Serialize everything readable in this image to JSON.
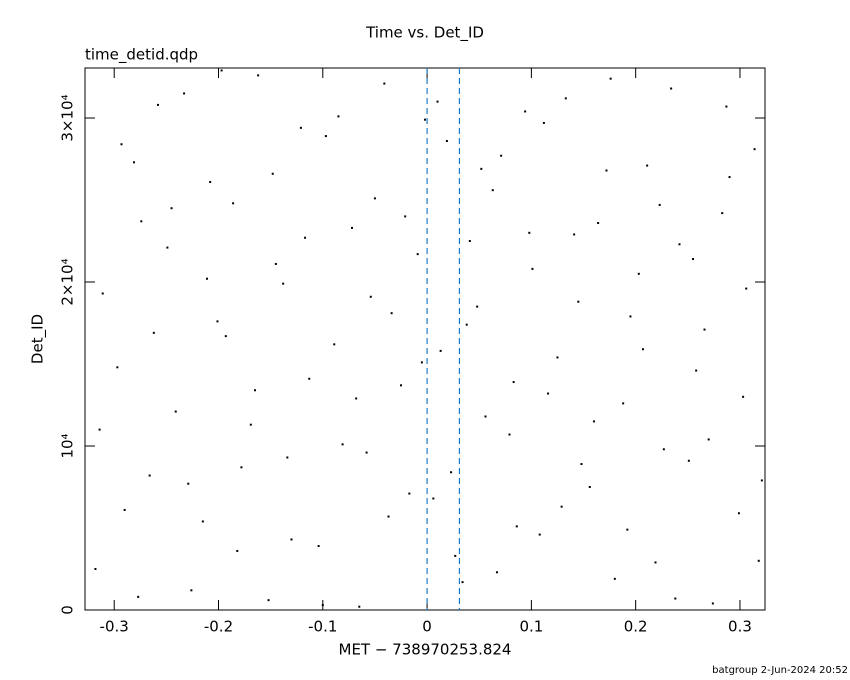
{
  "chart_data": {
    "type": "scatter",
    "title": "Time vs. Det_ID",
    "subtitle": "time_detid.qdp",
    "x_label": "MET − 738970253.824",
    "y_label": "Det_ID",
    "footer": "batgroup  2-Jun-2024 20:52",
    "xlim": [
      -0.328,
      0.324
    ],
    "ylim": [
      0,
      33050
    ],
    "xticks": [
      -0.3,
      -0.2,
      -0.1,
      0,
      0.1,
      0.2,
      0.3
    ],
    "yticks": [
      0,
      {
        "value": 10000,
        "label": "10⁴"
      },
      {
        "value": 20000,
        "label": "2×10⁴"
      },
      {
        "value": 30000,
        "label": "3×10⁴"
      }
    ],
    "vlines": [
      0,
      0.031
    ],
    "vline_color": "#1f78c8",
    "series": [
      {
        "color": "#000000",
        "x": [
          -0.318,
          -0.297,
          -0.281,
          -0.266,
          -0.249,
          -0.233,
          -0.215,
          -0.201,
          -0.186,
          -0.169,
          -0.152,
          -0.138,
          -0.121,
          -0.104,
          -0.089,
          -0.072,
          -0.058,
          -0.041,
          -0.025,
          -0.009,
          0.006,
          0.019,
          0.034,
          0.048,
          0.063,
          0.079,
          0.094,
          0.108,
          0.125,
          0.141,
          0.156,
          0.172,
          0.188,
          0.203,
          0.219,
          0.234,
          0.251,
          0.266,
          0.283,
          0.299,
          0.314,
          -0.311,
          -0.29,
          -0.274,
          -0.258,
          -0.241,
          -0.226,
          -0.208,
          -0.193,
          -0.178,
          -0.162,
          -0.145,
          -0.13,
          -0.113,
          -0.097,
          -0.081,
          -0.065,
          -0.05,
          -0.034,
          -0.017,
          -0.002,
          0.013,
          0.027,
          0.041,
          0.056,
          0.071,
          0.086,
          0.101,
          0.116,
          0.133,
          0.148,
          0.164,
          0.18,
          0.195,
          0.211,
          0.227,
          0.242,
          0.258,
          0.274,
          0.29,
          0.306,
          0.321,
          -0.314,
          -0.293,
          -0.277,
          -0.262,
          -0.245,
          -0.229,
          -0.211,
          -0.197,
          -0.182,
          -0.165,
          -0.148,
          -0.134,
          -0.117,
          -0.1,
          -0.085,
          -0.068,
          -0.054,
          -0.037,
          -0.021,
          -0.005,
          0.01,
          0.023,
          0.038,
          0.052,
          0.067,
          0.083,
          0.098,
          0.112,
          0.129,
          0.145,
          0.16,
          0.176,
          0.192,
          0.207,
          0.223,
          0.238,
          0.255,
          0.27,
          0.287,
          0.303,
          0.318
        ],
        "y": [
          2500,
          14800,
          27300,
          8200,
          22100,
          31500,
          5400,
          17600,
          24800,
          11300,
          600,
          19900,
          29400,
          3900,
          16200,
          23300,
          9600,
          32100,
          13700,
          21700,
          6800,
          28600,
          1700,
          18500,
          25600,
          10700,
          30400,
          4600,
          15400,
          22900,
          7500,
          26800,
          12600,
          20500,
          2900,
          31800,
          9100,
          17100,
          24200,
          5900,
          28100,
          19300,
          6100,
          23700,
          30800,
          12100,
          1200,
          26100,
          16700,
          8700,
          32600,
          21100,
          4300,
          14100,
          28900,
          10100,
          200,
          25100,
          18100,
          7100,
          29900,
          15800,
          3300,
          22500,
          11800,
          27700,
          5100,
          20800,
          13200,
          31200,
          8900,
          23600,
          1900,
          17900,
          27100,
          9800,
          22300,
          14600,
          400,
          26400,
          19600,
          7900,
          11000,
          28400,
          800,
          16900,
          24500,
          7700,
          20200,
          32900,
          3600,
          13400,
          26600,
          9300,
          22700,
          300,
          30100,
          12900,
          19100,
          5700,
          24000,
          15100,
          31000,
          8400,
          17400,
          26900,
          2300,
          13900,
          23000,
          29700,
          6300,
          18800,
          11500,
          32400,
          4900,
          15900,
          24700,
          700,
          21400,
          10400,
          30700,
          13000,
          3000
        ]
      }
    ]
  }
}
